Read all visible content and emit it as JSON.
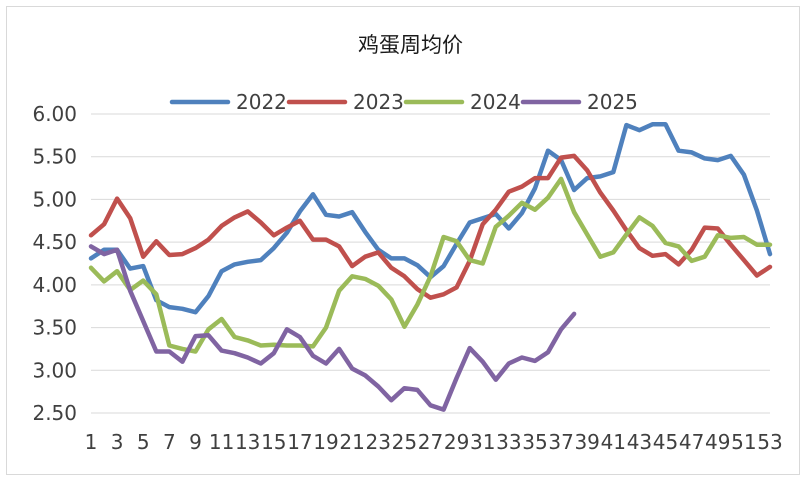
{
  "chart_data": {
    "type": "line",
    "title": "鸡蛋周均价",
    "xlabel": "",
    "ylabel": "",
    "ylim": [
      2.5,
      6.0
    ],
    "yticks": [
      "6.00",
      "5.50",
      "5.00",
      "4.50",
      "4.00",
      "3.50",
      "3.00",
      "2.50"
    ],
    "ytick_values": [
      6.0,
      5.5,
      5.0,
      4.5,
      4.0,
      3.5,
      3.0,
      2.5
    ],
    "xticks": [
      "1",
      "3",
      "5",
      "7",
      "9",
      "11",
      "13",
      "15",
      "17",
      "19",
      "21",
      "23",
      "25",
      "27",
      "29",
      "31",
      "33",
      "35",
      "37",
      "39",
      "41",
      "43",
      "45",
      "47",
      "49",
      "51",
      "53"
    ],
    "xtick_values": [
      1,
      3,
      5,
      7,
      9,
      11,
      13,
      15,
      17,
      19,
      21,
      23,
      25,
      27,
      29,
      31,
      33,
      35,
      37,
      39,
      41,
      43,
      45,
      47,
      49,
      51,
      53
    ],
    "grid": "horizontal",
    "legend_position": "top",
    "series": [
      {
        "name": "2022",
        "color": "#4f81bd",
        "x": [
          1,
          2,
          3,
          4,
          5,
          6,
          7,
          8,
          9,
          10,
          11,
          12,
          13,
          14,
          15,
          16,
          17,
          18,
          19,
          20,
          21,
          22,
          23,
          24,
          25,
          26,
          27,
          28,
          29,
          30,
          31,
          32,
          33,
          34,
          35,
          36,
          37,
          38,
          39,
          40,
          41,
          42,
          43,
          44,
          45,
          46,
          47,
          48,
          49,
          50,
          51,
          52,
          53
        ],
        "values": [
          4.31,
          4.41,
          4.41,
          4.19,
          4.22,
          3.82,
          3.74,
          3.72,
          3.68,
          3.87,
          4.16,
          4.24,
          4.27,
          4.29,
          4.43,
          4.61,
          4.86,
          5.06,
          4.82,
          4.8,
          4.85,
          4.62,
          4.41,
          4.31,
          4.31,
          4.23,
          4.09,
          4.22,
          4.48,
          4.73,
          4.78,
          4.83,
          4.66,
          4.84,
          5.13,
          5.57,
          5.46,
          5.11,
          5.25,
          5.27,
          5.32,
          5.87,
          5.81,
          5.88,
          5.88,
          5.57,
          5.55,
          5.48,
          5.46,
          5.51,
          5.29,
          4.87,
          4.36
        ]
      },
      {
        "name": "2023",
        "color": "#c0504d",
        "x": [
          1,
          2,
          3,
          4,
          5,
          6,
          7,
          8,
          9,
          10,
          11,
          12,
          13,
          14,
          15,
          16,
          17,
          18,
          19,
          20,
          21,
          22,
          23,
          24,
          25,
          26,
          27,
          28,
          29,
          30,
          31,
          32,
          33,
          34,
          35,
          36,
          37,
          38,
          39,
          40,
          41,
          42,
          43,
          44,
          45,
          46,
          47,
          48,
          49,
          50,
          51,
          52,
          53
        ],
        "values": [
          4.58,
          4.71,
          5.01,
          4.78,
          4.33,
          4.51,
          4.35,
          4.36,
          4.43,
          4.53,
          4.69,
          4.79,
          4.86,
          4.73,
          4.58,
          4.67,
          4.75,
          4.53,
          4.53,
          4.45,
          4.22,
          4.33,
          4.38,
          4.2,
          4.1,
          3.95,
          3.85,
          3.89,
          3.97,
          4.28,
          4.71,
          4.88,
          5.09,
          5.15,
          5.25,
          5.25,
          5.49,
          5.51,
          5.34,
          5.08,
          4.87,
          4.64,
          4.43,
          4.34,
          4.36,
          4.24,
          4.41,
          4.67,
          4.66,
          4.47,
          4.29,
          4.11,
          4.21
        ]
      },
      {
        "name": "2024",
        "color": "#9bbb59",
        "x": [
          1,
          2,
          3,
          4,
          5,
          6,
          7,
          8,
          9,
          10,
          11,
          12,
          13,
          14,
          15,
          16,
          17,
          18,
          19,
          20,
          21,
          22,
          23,
          24,
          25,
          26,
          27,
          28,
          29,
          30,
          31,
          32,
          33,
          34,
          35,
          36,
          37,
          38,
          39,
          40,
          41,
          42,
          43,
          44,
          45,
          46,
          47,
          48,
          49,
          50,
          51,
          52,
          53
        ],
        "values": [
          4.2,
          4.04,
          4.16,
          3.94,
          4.05,
          3.89,
          3.29,
          3.25,
          3.22,
          3.48,
          3.6,
          3.39,
          3.35,
          3.29,
          3.3,
          3.29,
          3.29,
          3.28,
          3.5,
          3.93,
          4.1,
          4.07,
          3.99,
          3.83,
          3.51,
          3.77,
          4.1,
          4.56,
          4.51,
          4.29,
          4.25,
          4.68,
          4.81,
          4.96,
          4.88,
          5.02,
          5.24,
          4.85,
          4.59,
          4.33,
          4.38,
          4.59,
          4.79,
          4.69,
          4.49,
          4.45,
          4.28,
          4.33,
          4.58,
          4.55,
          4.56,
          4.47,
          4.47
        ]
      },
      {
        "name": "2025",
        "color": "#8064a2",
        "x": [
          1,
          2,
          3,
          4,
          6,
          7,
          8,
          9,
          10,
          11,
          12,
          13,
          14,
          15,
          16,
          17,
          18,
          19,
          20,
          21,
          22,
          23,
          24,
          25,
          26,
          27,
          28,
          29,
          30,
          31,
          32,
          33,
          34,
          35,
          36,
          37,
          38
        ],
        "values": [
          4.45,
          4.36,
          4.41,
          3.93,
          3.22,
          3.22,
          3.1,
          3.4,
          3.41,
          3.23,
          3.2,
          3.15,
          3.08,
          3.2,
          3.48,
          3.39,
          3.17,
          3.08,
          3.25,
          3.02,
          2.94,
          2.81,
          2.65,
          2.79,
          2.77,
          2.59,
          2.54,
          2.91,
          3.26,
          3.1,
          2.89,
          3.08,
          3.15,
          3.11,
          3.21,
          3.48,
          3.66
        ]
      }
    ]
  }
}
